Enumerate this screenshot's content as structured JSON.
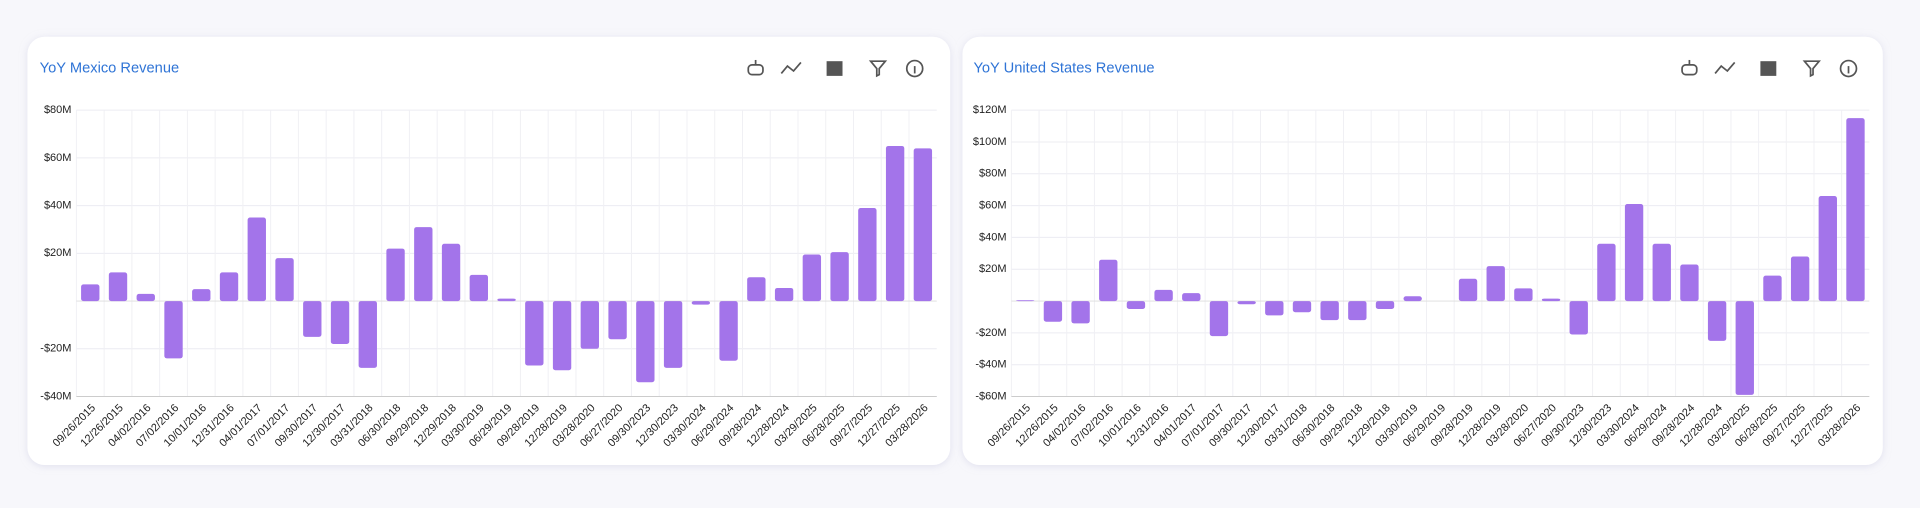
{
  "chart_data": [
    {
      "type": "bar",
      "title": "YoY Mexico Revenue",
      "categories": [
        "09/26/2015",
        "12/26/2015",
        "04/02/2016",
        "07/02/2016",
        "10/01/2016",
        "12/31/2016",
        "04/01/2017",
        "07/01/2017",
        "09/30/2017",
        "12/30/2017",
        "03/31/2018",
        "06/30/2018",
        "09/29/2018",
        "12/29/2018",
        "03/30/2019",
        "06/29/2019",
        "09/28/2019",
        "12/28/2019",
        "03/28/2020",
        "06/27/2020",
        "09/30/2023",
        "12/30/2023",
        "03/30/2024",
        "06/29/2024",
        "09/28/2024",
        "12/28/2024",
        "03/29/2025",
        "06/28/2025",
        "09/27/2025",
        "12/27/2025",
        "03/28/2026"
      ],
      "values": [
        7,
        12,
        3,
        -24,
        5,
        12,
        35,
        18,
        -15,
        -18,
        -28,
        22,
        31,
        24,
        11,
        1,
        -27,
        -29,
        -20,
        -16,
        -34,
        -28,
        -1.5,
        -25,
        10,
        5.5,
        19.5,
        20.5,
        39,
        65,
        64
      ],
      "color": "#a374ea",
      "ylim": [
        -40,
        80
      ],
      "yticks": [
        {
          "value": -40,
          "label": "-$40M"
        },
        {
          "value": -20,
          "label": "-$20M"
        },
        {
          "value": 20,
          "label": "$20M"
        },
        {
          "value": 40,
          "label": "$40M"
        },
        {
          "value": 60,
          "label": "$60M"
        },
        {
          "value": 80,
          "label": "$80M"
        }
      ],
      "grid": true
    },
    {
      "type": "bar",
      "title": "YoY United States Revenue",
      "categories": [
        "09/26/2015",
        "12/26/2015",
        "04/02/2016",
        "07/02/2016",
        "10/01/2016",
        "12/31/2016",
        "04/01/2017",
        "07/01/2017",
        "09/30/2017",
        "12/30/2017",
        "03/31/2018",
        "06/30/2018",
        "09/29/2018",
        "12/29/2018",
        "03/30/2019",
        "06/29/2019",
        "09/28/2019",
        "12/28/2019",
        "03/28/2020",
        "06/27/2020",
        "09/30/2023",
        "12/30/2023",
        "03/30/2024",
        "06/29/2024",
        "09/28/2024",
        "12/28/2024",
        "03/29/2025",
        "06/28/2025",
        "09/27/2025",
        "12/27/2025",
        "03/28/2026"
      ],
      "values": [
        0.5,
        -13,
        -14,
        26,
        -5,
        7,
        5,
        -22,
        -2,
        -9,
        -7,
        -12,
        -12,
        -5,
        3,
        0,
        14,
        22,
        8,
        1.5,
        -21,
        36,
        61,
        36,
        23,
        -25,
        -59,
        16,
        28,
        66,
        115
      ],
      "color": "#a374ea",
      "ylim": [
        -60,
        120
      ],
      "yticks": [
        {
          "value": -60,
          "label": "-$60M"
        },
        {
          "value": -40,
          "label": "-$40M"
        },
        {
          "value": -20,
          "label": "-$20M"
        },
        {
          "value": 20,
          "label": "$20M"
        },
        {
          "value": 40,
          "label": "$40M"
        },
        {
          "value": 60,
          "label": "$60M"
        },
        {
          "value": 80,
          "label": "$80M"
        },
        {
          "value": 100,
          "label": "$100M"
        },
        {
          "value": 120,
          "label": "$120M"
        }
      ],
      "grid": true
    }
  ]
}
